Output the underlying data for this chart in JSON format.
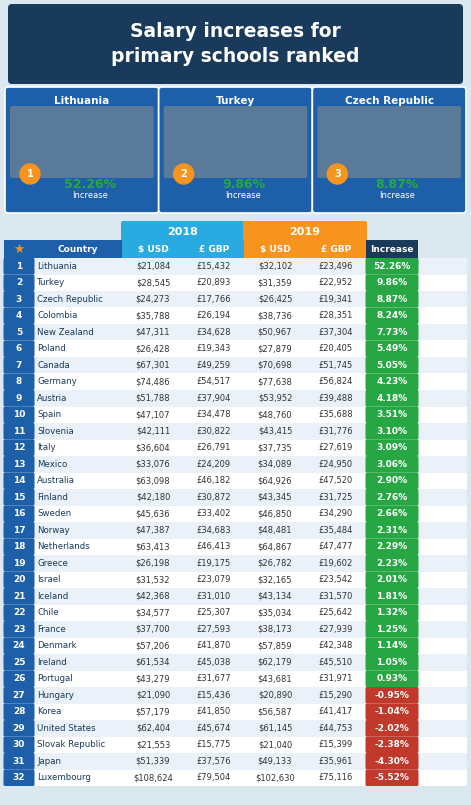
{
  "title": "Salary increases for\nprimary schools ranked",
  "title_bg": "#1a3a5c",
  "top3": [
    {
      "country": "Lithuania",
      "rank": 1,
      "pct": "52.26%"
    },
    {
      "country": "Turkey",
      "rank": 2,
      "pct": "9.86%"
    },
    {
      "country": "Czech Republic",
      "rank": 3,
      "pct": "8.87%"
    }
  ],
  "header_2018_color": "#29abe2",
  "header_2019_color": "#f7941d",
  "header_increase_color": "#1a3a5c",
  "rank_col_color": "#1d5fa8",
  "row_bg_even": "#ffffff",
  "row_bg_odd": "#eaf1f8",
  "positive_color": "#27a744",
  "negative_color": "#c0392b",
  "rows": [
    [
      1,
      "Lithuania",
      "$21,084",
      "£15,432",
      "$32,102",
      "£23,496",
      "52.26%",
      true
    ],
    [
      2,
      "Turkey",
      "$28,545",
      "£20,893",
      "$31,359",
      "£22,952",
      "9.86%",
      true
    ],
    [
      3,
      "Czech Republic",
      "$24,273",
      "£17,766",
      "$26,425",
      "£19,341",
      "8.87%",
      true
    ],
    [
      4,
      "Colombia",
      "$35,788",
      "£26,194",
      "$38,736",
      "£28,351",
      "8.24%",
      true
    ],
    [
      5,
      "New Zealand",
      "$47,311",
      "£34,628",
      "$50,967",
      "£37,304",
      "7.73%",
      true
    ],
    [
      6,
      "Poland",
      "$26,428",
      "£19,343",
      "$27,879",
      "£20,405",
      "5.49%",
      true
    ],
    [
      7,
      "Canada",
      "$67,301",
      "£49,259",
      "$70,698",
      "£51,745",
      "5.05%",
      true
    ],
    [
      8,
      "Germany",
      "$74,486",
      "£54,517",
      "$77,638",
      "£56,824",
      "4.23%",
      true
    ],
    [
      9,
      "Austria",
      "$51,788",
      "£37,904",
      "$53,952",
      "£39,488",
      "4.18%",
      true
    ],
    [
      10,
      "Spain",
      "$47,107",
      "£34,478",
      "$48,760",
      "£35,688",
      "3.51%",
      true
    ],
    [
      11,
      "Slovenia",
      "$42,111",
      "£30,822",
      "$43,415",
      "£31,776",
      "3.10%",
      true
    ],
    [
      12,
      "Italy",
      "$36,604",
      "£26,791",
      "$37,735",
      "£27,619",
      "3.09%",
      true
    ],
    [
      13,
      "Mexico",
      "$33,076",
      "£24,209",
      "$34,089",
      "£24,950",
      "3.06%",
      true
    ],
    [
      14,
      "Australia",
      "$63,098",
      "£46,182",
      "$64,926",
      "£47,520",
      "2.90%",
      true
    ],
    [
      15,
      "Finland",
      "$42,180",
      "£30,872",
      "$43,345",
      "£31,725",
      "2.76%",
      true
    ],
    [
      16,
      "Sweden",
      "$45,636",
      "£33,402",
      "$46,850",
      "£34,290",
      "2.66%",
      true
    ],
    [
      17,
      "Norway",
      "$47,387",
      "£34,683",
      "$48,481",
      "£35,484",
      "2.31%",
      true
    ],
    [
      18,
      "Netherlands",
      "$63,413",
      "£46,413",
      "$64,867",
      "£47,477",
      "2.29%",
      true
    ],
    [
      19,
      "Greece",
      "$26,198",
      "£19,175",
      "$26,782",
      "£19,602",
      "2.23%",
      true
    ],
    [
      20,
      "Israel",
      "$31,532",
      "£23,079",
      "$32,165",
      "£23,542",
      "2.01%",
      true
    ],
    [
      21,
      "Iceland",
      "$42,368",
      "£31,010",
      "$43,134",
      "£31,570",
      "1.81%",
      true
    ],
    [
      22,
      "Chile",
      "$34,577",
      "£25,307",
      "$35,034",
      "£25,642",
      "1.32%",
      true
    ],
    [
      23,
      "France",
      "$37,700",
      "£27,593",
      "$38,173",
      "£27,939",
      "1.25%",
      true
    ],
    [
      24,
      "Denmark",
      "$57,206",
      "£41,870",
      "$57,859",
      "£42,348",
      "1.14%",
      true
    ],
    [
      25,
      "Ireland",
      "$61,534",
      "£45,038",
      "$62,179",
      "£45,510",
      "1.05%",
      true
    ],
    [
      26,
      "Portugal",
      "$43,279",
      "£31,677",
      "$43,681",
      "£31,971",
      "0.93%",
      true
    ],
    [
      27,
      "Hungary",
      "$21,090",
      "£15,436",
      "$20,890",
      "£15,290",
      "-0.95%",
      false
    ],
    [
      28,
      "Korea",
      "$57,179",
      "£41,850",
      "$56,587",
      "£41,417",
      "-1.04%",
      false
    ],
    [
      29,
      "United States",
      "$62,404",
      "£45,674",
      "$61,145",
      "£44,753",
      "-2.02%",
      false
    ],
    [
      30,
      "Slovak Republic",
      "$21,553",
      "£15,775",
      "$21,040",
      "£15,399",
      "-2.38%",
      false
    ],
    [
      31,
      "Japan",
      "$51,339",
      "£37,576",
      "$49,133",
      "£35,961",
      "-4.30%",
      false
    ],
    [
      32,
      "Luxembourg",
      "$108,624",
      "£79,504",
      "$102,630",
      "£75,116",
      "-5.52%",
      false
    ]
  ]
}
